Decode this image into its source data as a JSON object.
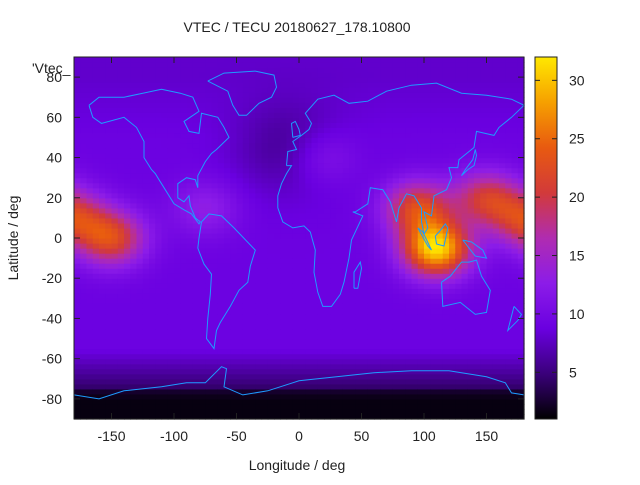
{
  "chart_data": {
    "type": "heatmap",
    "title": "VTEC / TECU 20180627_178.10800",
    "xlabel": "Longitude / deg",
    "ylabel": "Latitude / deg",
    "key_label": "'Vtec_",
    "xlim": [
      -180,
      180
    ],
    "ylim": [
      -90,
      90
    ],
    "x_ticks": [
      -150,
      -100,
      -50,
      0,
      50,
      100,
      150
    ],
    "y_ticks": [
      -80,
      -60,
      -40,
      -20,
      0,
      20,
      40,
      60,
      80
    ],
    "colorbar": {
      "min": 1,
      "max": 32,
      "ticks": [
        5,
        10,
        15,
        20,
        25,
        30
      ]
    },
    "colormap": [
      "#000000",
      "#3a007a",
      "#6a00e0",
      "#8c1ce8",
      "#b02cb0",
      "#d23a3a",
      "#e85a10",
      "#f6a000",
      "#ffe800"
    ],
    "coastline_color": "#1e9bff",
    "grid_resolution_deg": {
      "lon": 5,
      "lat": 2.5
    },
    "vtec_field": {
      "background_mid": 9,
      "polar_north": 8,
      "polar_south": 3,
      "night_depression": {
        "lon": -10,
        "lat": 45,
        "depth": 3
      },
      "peaks": [
        {
          "lon": 110,
          "lat": -5,
          "value": 31
        },
        {
          "lon": 95,
          "lat": 15,
          "value": 22
        },
        {
          "lon": 150,
          "lat": 20,
          "value": 20
        },
        {
          "lon": -180,
          "lat": 10,
          "value": 20
        },
        {
          "lon": -150,
          "lat": 0,
          "value": 22
        },
        {
          "lon": -75,
          "lat": 15,
          "value": 13
        },
        {
          "lon": 20,
          "lat": 40,
          "value": 12
        }
      ]
    }
  }
}
